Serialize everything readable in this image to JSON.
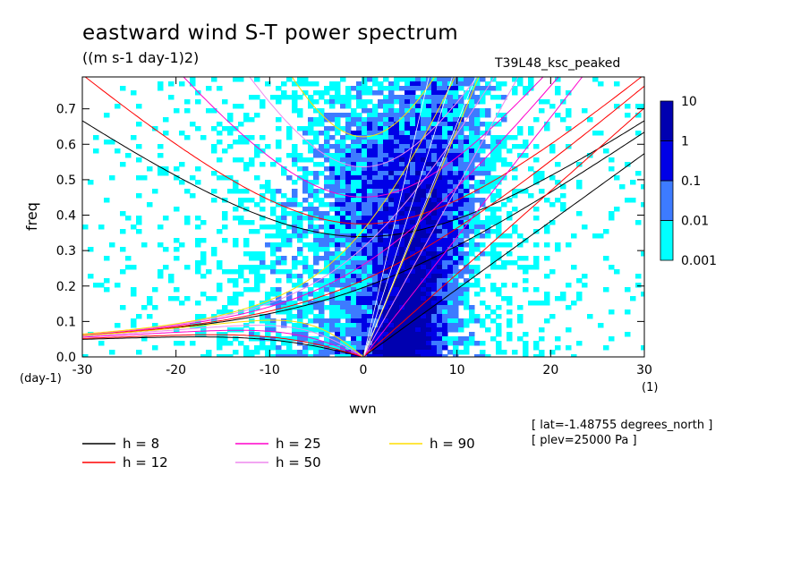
{
  "chart_data": {
    "type": "heatmap",
    "title": "eastward wind S-T power spectrum",
    "subtitle": "((m s-1 day-1)2)",
    "run_label": "T39L48_ksc_peaked",
    "xlabel": "wvn",
    "ylabel": "freq",
    "x_unit": "(day-1)",
    "x_unit_right": "(1)",
    "xlim": [
      -30,
      30
    ],
    "ylim": [
      0,
      0.79
    ],
    "xticks": [
      -30,
      -20,
      -10,
      0,
      10,
      20,
      30
    ],
    "xtick_labels": [
      "-30",
      "-20",
      "-10",
      "0",
      "10",
      "20",
      "30"
    ],
    "yticks": [
      0,
      0.1,
      0.2,
      0.3,
      0.4,
      0.5,
      0.6,
      0.7
    ],
    "ytick_labels": [
      "0.0",
      "0.1",
      "0.2",
      "0.3",
      "0.4",
      "0.5",
      "0.6",
      "0.7"
    ],
    "colorbar": {
      "levels": [
        0.001,
        0.01,
        0.1,
        1,
        10
      ],
      "labels": [
        "0.001",
        "0.01",
        "0.1",
        "1",
        "10"
      ],
      "colors": [
        "#00ffff",
        "#3d7bff",
        "#0000e6",
        "#0000b0",
        "#5a28c8"
      ]
    },
    "contour_levels_colors": {
      "bg": "#ffffff",
      "l1": "#00ffff",
      "l2": "#3d7bff",
      "l3": "#0000e6",
      "l4": "#0000b0"
    },
    "dispersion_curves": [
      {
        "h": 8,
        "color": "#000000",
        "legend": "h =  8"
      },
      {
        "h": 12,
        "color": "#ff0000",
        "legend": "h = 12"
      },
      {
        "h": 25,
        "color": "#ff00cc",
        "legend": "h = 25"
      },
      {
        "h": 50,
        "color": "#ee88ee",
        "legend": "h = 50"
      },
      {
        "h": 90,
        "color": "#ffdd00",
        "legend": "h = 90"
      }
    ],
    "kelvin_wave_line_color": "#ffffff"
  },
  "meta": {
    "lat": "[ lat=-1.48755 degrees_north ]",
    "plev": "[ plev=25000 Pa ]"
  }
}
